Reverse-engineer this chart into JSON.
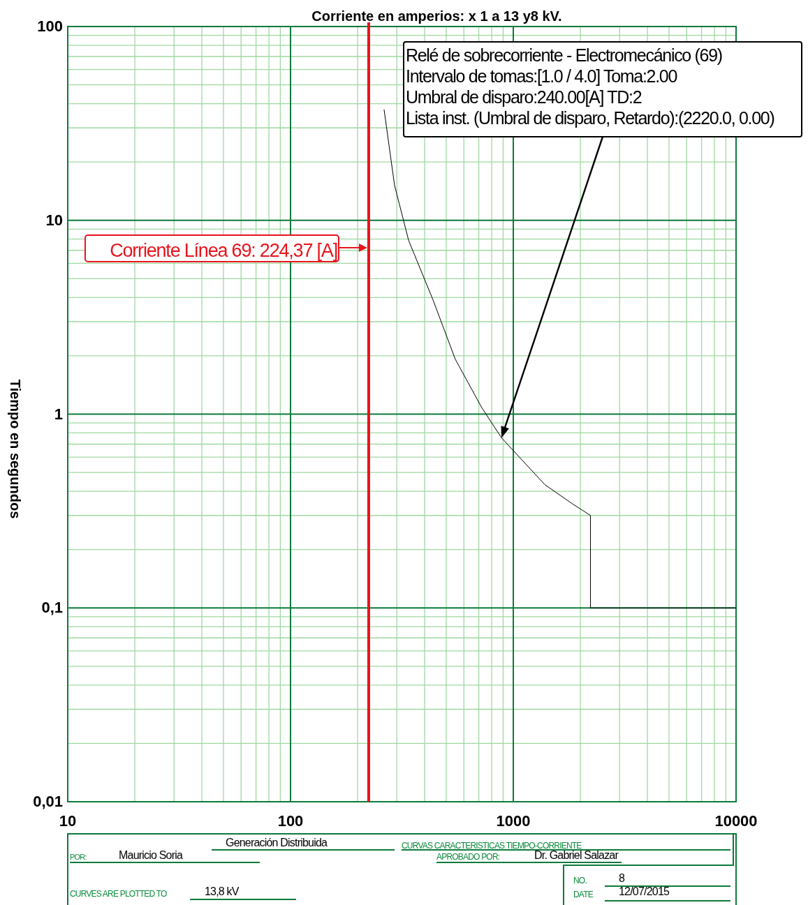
{
  "chart_data": {
    "type": "line",
    "title": "Corriente en amperios: x 1 a 13 y8 kV.",
    "ylabel": "Tiempo en segundos",
    "log": "xy",
    "grid": true,
    "marker": "none",
    "line_style": "solid",
    "xlim": [
      10,
      10000
    ],
    "xticks": [
      10,
      {
        "value": 20,
        "label": null
      },
      {
        "value": 30,
        "label": null
      },
      {
        "value": 40,
        "label": null
      },
      {
        "value": 50,
        "label": null
      },
      {
        "value": 60,
        "label": null
      },
      {
        "value": 70,
        "label": null
      },
      {
        "value": 80,
        "label": null
      },
      {
        "value": 90,
        "label": null
      },
      100,
      {
        "value": 200,
        "label": null
      },
      {
        "value": 300,
        "label": null
      },
      {
        "value": 400,
        "label": null
      },
      {
        "value": 500,
        "label": null
      },
      {
        "value": 600,
        "label": null
      },
      {
        "value": 700,
        "label": null
      },
      {
        "value": 800,
        "label": null
      },
      {
        "value": 900,
        "label": null
      },
      1000,
      {
        "value": 2000,
        "label": null
      },
      {
        "value": 3000,
        "label": null
      },
      {
        "value": 4000,
        "label": null
      },
      {
        "value": 5000,
        "label": null
      },
      {
        "value": 6000,
        "label": null
      },
      {
        "value": 7000,
        "label": null
      },
      {
        "value": 8000,
        "label": null
      },
      {
        "value": 9000,
        "label": null
      },
      10000
    ],
    "ylim": [
      0.01,
      100
    ],
    "yticks": [
      {
        "value": 0.01,
        "label": "0,01"
      },
      {
        "value": 0.02,
        "label": null
      },
      {
        "value": 0.03,
        "label": null
      },
      {
        "value": 0.04,
        "label": null
      },
      {
        "value": 0.05,
        "label": null
      },
      {
        "value": 0.06,
        "label": null
      },
      {
        "value": 0.07,
        "label": null
      },
      {
        "value": 0.08,
        "label": null
      },
      {
        "value": 0.09,
        "label": null
      },
      {
        "value": 0.1,
        "label": "0,1"
      },
      {
        "value": 0.2,
        "label": null
      },
      {
        "value": 0.3,
        "label": null
      },
      {
        "value": 0.4,
        "label": null
      },
      {
        "value": 0.5,
        "label": null
      },
      {
        "value": 0.6,
        "label": null
      },
      {
        "value": 0.7,
        "label": null
      },
      {
        "value": 0.8,
        "label": null
      },
      {
        "value": 0.9,
        "label": null
      },
      {
        "value": 1,
        "label": "1"
      },
      {
        "value": 2,
        "label": null
      },
      {
        "value": 3,
        "label": null
      },
      {
        "value": 4,
        "label": null
      },
      {
        "value": 5,
        "label": null
      },
      {
        "value": 6,
        "label": null
      },
      {
        "value": 7,
        "label": null
      },
      {
        "value": 8,
        "label": null
      },
      {
        "value": 9,
        "label": null
      },
      {
        "value": 10,
        "label": "10"
      },
      {
        "value": 20,
        "label": null
      },
      {
        "value": 30,
        "label": null
      },
      {
        "value": 40,
        "label": null
      },
      {
        "value": 50,
        "label": null
      },
      {
        "value": 60,
        "label": null
      },
      {
        "value": 70,
        "label": null
      },
      {
        "value": 80,
        "label": null
      },
      {
        "value": 90,
        "label": null
      },
      {
        "value": 100,
        "label": "100"
      }
    ],
    "series": [
      {
        "color": "#000000",
        "x": [
          263,
          293,
          339,
          436,
          549,
          722,
          885,
          1384,
          1846,
          2220,
          2220,
          10000
        ],
        "values": [
          37.3,
          15.2,
          7.87,
          3.89,
          1.92,
          1.08,
          0.755,
          0.433,
          0.344,
          0.3,
          0.1,
          0.1
        ]
      }
    ],
    "ref_lines": [
      {
        "axis": "x",
        "value": 224.37,
        "label": "Corriente Línea 69: 224,37 [A]",
        "color": "#e8141c"
      }
    ],
    "annotations": [
      "Relé de sobrecorriente - Electromecánico (69)\nIntervalo de tomas:[1.0 / 4.0] Toma:2.00\nUmbral de disparo:240.00[A] TD:2\nLista inst. (Umbral de disparo, Retardo):(2220.0, 0.00)",
      "POR:",
      "Mauricio Soria",
      "Generación Distribuida",
      "CURVAS CARACTERISTICAS TIEMPO-CORRIENTE",
      "APROBADO POR:",
      "Dr. Gabriel Salazar",
      "CURVES ARE PLOTTED TO",
      "13,8 kV",
      "NO.",
      "8",
      "DATE",
      "12/07/2015"
    ]
  }
}
